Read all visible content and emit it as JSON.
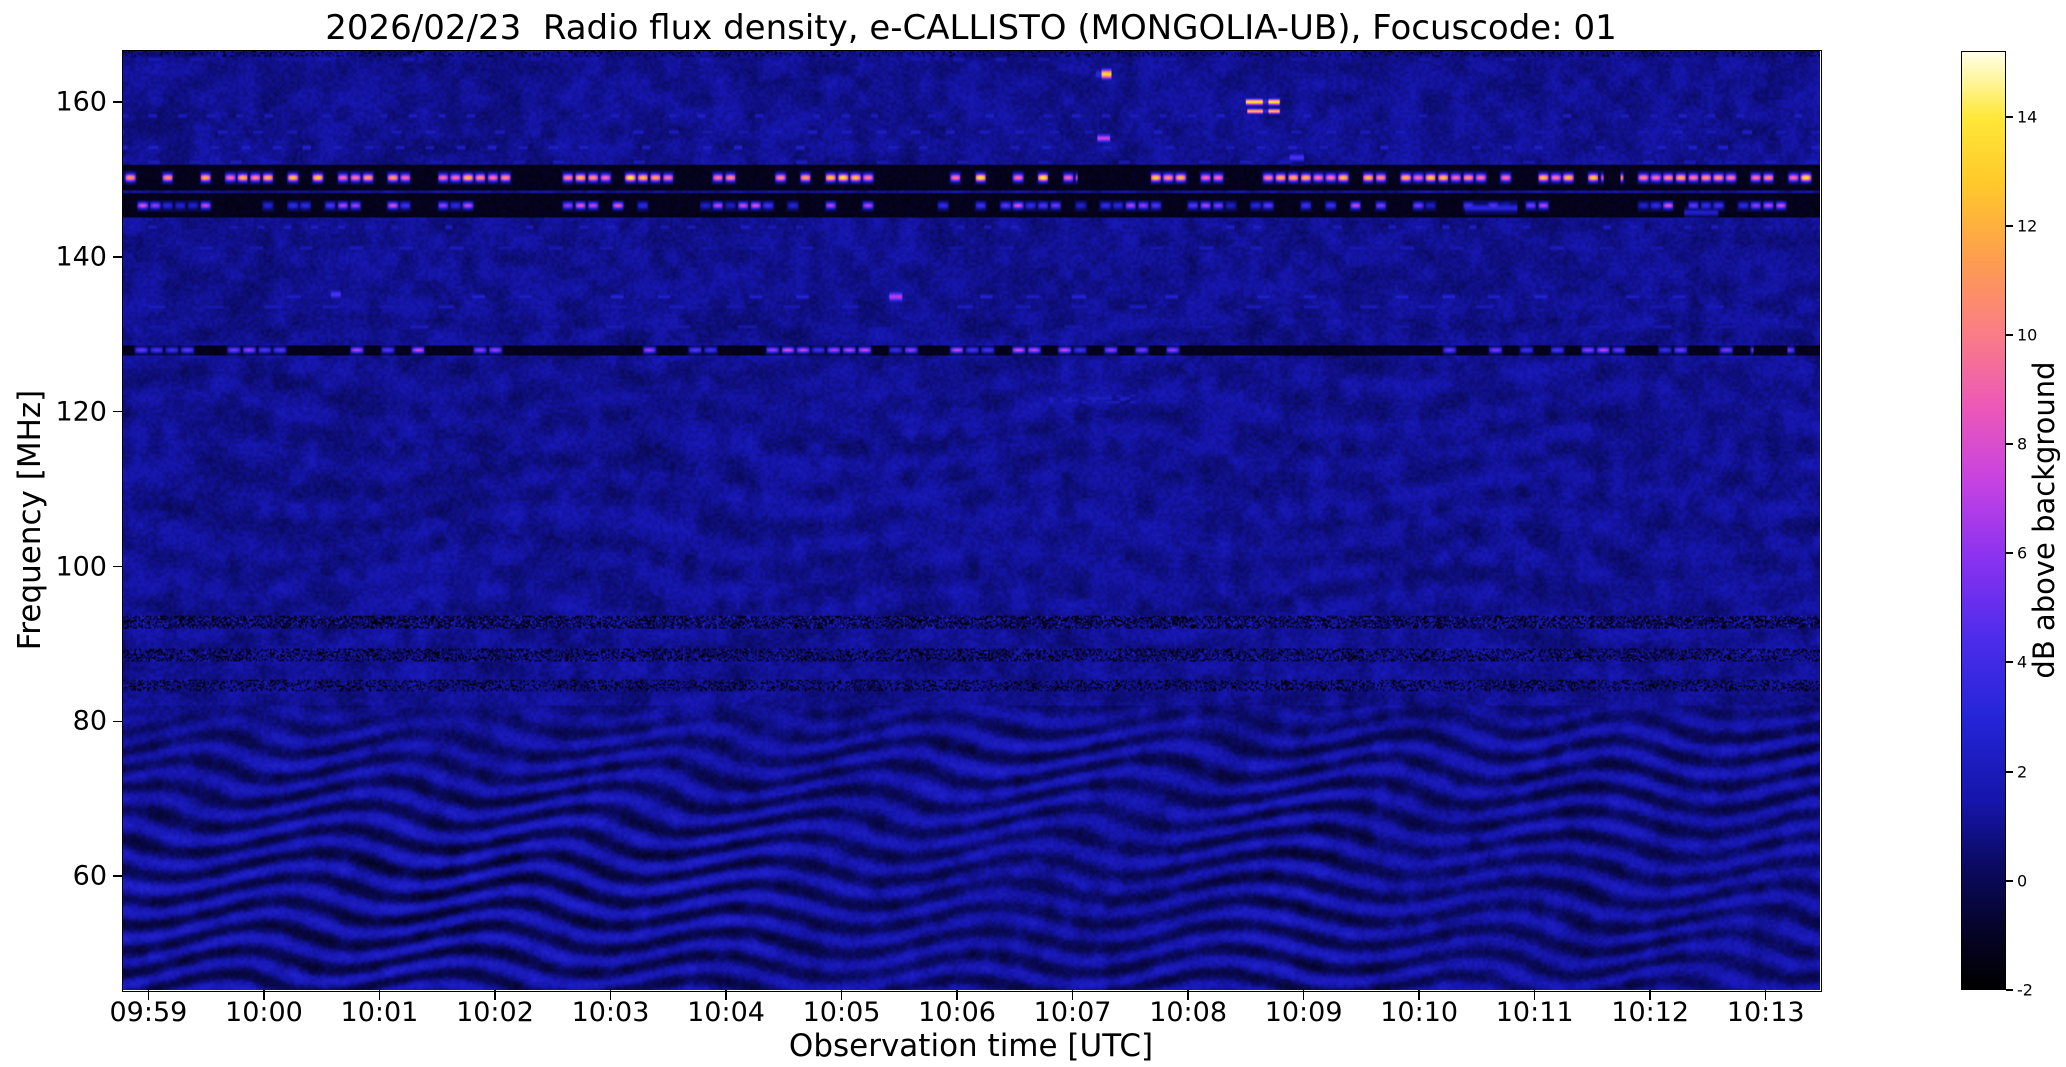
{
  "title": "2026/02/23  Radio flux density, e-CALLISTO (MONGOLIA-UB), Focuscode: 01",
  "metadata_from_title": {
    "date": "2026/02/23",
    "quantity": "Radio flux density",
    "instrument": "e-CALLISTO",
    "station": "MONGOLIA-UB",
    "focuscode": "01"
  },
  "chart_data": {
    "type": "heatmap",
    "subtype": "radio-spectrogram",
    "title": "2026/02/23  Radio flux density, e-CALLISTO (MONGOLIA-UB), Focuscode: 01",
    "x_axis": {
      "label": "Observation time [UTC]",
      "tick_labels": [
        "09:59",
        "10:00",
        "10:01",
        "10:02",
        "10:03",
        "10:04",
        "10:05",
        "10:06",
        "10:07",
        "10:08",
        "10:09",
        "10:10",
        "10:11",
        "10:12",
        "10:13"
      ],
      "t_start_min": -0.22,
      "t_end_min": 14.47
    },
    "y_axis": {
      "label": "Frequency [MHz]",
      "ticks": [
        160,
        140,
        120,
        100,
        80,
        60
      ],
      "range": [
        45.3,
        166.6
      ]
    },
    "colorbar": {
      "label": "dB above background",
      "ticks": [
        -2,
        0,
        2,
        4,
        6,
        8,
        10,
        12,
        14
      ],
      "range": [
        -2,
        15.2
      ],
      "stops": [
        {
          "p": 0.0,
          "c": "#000000"
        },
        {
          "p": 0.06,
          "c": "#050326"
        },
        {
          "p": 0.13,
          "c": "#0a0a60"
        },
        {
          "p": 0.2,
          "c": "#1515aa"
        },
        {
          "p": 0.29,
          "c": "#2525d8"
        },
        {
          "p": 0.37,
          "c": "#4a2ceb"
        },
        {
          "p": 0.46,
          "c": "#8a32f0"
        },
        {
          "p": 0.54,
          "c": "#c542e2"
        },
        {
          "p": 0.62,
          "c": "#ec58b8"
        },
        {
          "p": 0.7,
          "c": "#fa7d85"
        },
        {
          "p": 0.78,
          "c": "#fd9e4e"
        },
        {
          "p": 0.86,
          "c": "#ffc92a"
        },
        {
          "p": 0.93,
          "c": "#ffe838"
        },
        {
          "p": 1.0,
          "c": "#ffffe8"
        }
      ]
    },
    "features": {
      "background": {
        "mean_db": 1.0,
        "noise_db": 0.8
      },
      "bands": [
        {
          "freq": 150.3,
          "width": 1.7,
          "dash_s": 6.5,
          "duty": 0.62,
          "min_db": 9.5,
          "max_db": 15.4,
          "border": true,
          "seed": 11,
          "gaps": [
            [
              8.05,
              8.25
            ],
            [
              12.6,
              12.75
            ]
          ]
        },
        {
          "freq": 146.7,
          "width": 1.5,
          "dash_s": 6.5,
          "duty": 0.55,
          "min_db": 2.5,
          "max_db": 9.0,
          "border": true,
          "seed": 29,
          "gaps": []
        },
        {
          "freq": 128.0,
          "width": 1.3,
          "dash_s": 8.0,
          "duty": 0.5,
          "min_db": 4.0,
          "max_db": 8.5,
          "border": false,
          "seed": 47,
          "gaps": [
            [
              3.25,
              4.0
            ],
            [
              8.95,
              10.6
            ],
            [
              13.9,
              14.2
            ]
          ]
        }
      ],
      "dot_rows": [
        {
          "freq": 165.6,
          "period_s": 22,
          "db": 1.7,
          "seed": 3
        },
        {
          "freq": 158.3,
          "period_s": 15,
          "db": 2.3,
          "seed": 5
        },
        {
          "freq": 156.2,
          "period_s": 18,
          "db": 2.1,
          "seed": 7
        },
        {
          "freq": 154.2,
          "period_s": 16,
          "db": 2.4,
          "seed": 9
        },
        {
          "freq": 152.3,
          "period_s": 21,
          "db": 2.0,
          "seed": 13
        },
        {
          "freq": 143.9,
          "period_s": 14,
          "db": 2.2,
          "seed": 15
        },
        {
          "freq": 141.2,
          "period_s": 26,
          "db": 1.8,
          "seed": 17
        },
        {
          "freq": 134.9,
          "period_s": 24,
          "db": 2.6,
          "seed": 19
        },
        {
          "freq": 133.6,
          "period_s": 30,
          "db": 1.9,
          "seed": 21
        },
        {
          "freq": 131.0,
          "period_s": 34,
          "db": 1.7,
          "seed": 23
        }
      ],
      "speckle_bands": [
        {
          "freq_range": [
            91.9,
            93.7
          ],
          "density": 0.7,
          "db_range": [
            -2,
            3.2
          ],
          "seed": 31
        },
        {
          "freq_range": [
            87.7,
            89.3
          ],
          "density": 0.55,
          "db_range": [
            -2,
            2.8
          ],
          "seed": 37
        },
        {
          "freq_range": [
            83.9,
            85.3
          ],
          "density": 0.5,
          "db_range": [
            -2,
            2.4
          ],
          "seed": 41
        },
        {
          "freq_range": [
            165.9,
            166.6
          ],
          "density": 0.25,
          "db_range": [
            -1.5,
            0.5
          ],
          "seed": 43
        }
      ],
      "ripple": {
        "freq_max": 82,
        "vert_period_mhz": 3.1,
        "amp_db": 0.95,
        "time_wobble": 2.8
      },
      "transients": [
        {
          "freq": 163.7,
          "t_min": 8.2,
          "dur_min": 0.14,
          "db": 13.5,
          "height": 1.6,
          "texture": "dashed"
        },
        {
          "freq": 160.1,
          "t_min": 9.5,
          "dur_min": 0.3,
          "db": 14.5,
          "height": 1.0,
          "texture": "dashed"
        },
        {
          "freq": 158.9,
          "t_min": 9.52,
          "dur_min": 0.28,
          "db": 13.0,
          "height": 0.8,
          "texture": "dashed"
        },
        {
          "freq": 155.4,
          "t_min": 8.22,
          "dur_min": 0.1,
          "db": 7.5,
          "height": 1.3,
          "texture": "solid"
        },
        {
          "freq": 152.9,
          "t_min": 9.88,
          "dur_min": 0.12,
          "db": 4.5,
          "height": 1.3,
          "texture": "solid"
        },
        {
          "freq": 134.9,
          "t_min": 6.42,
          "dur_min": 0.1,
          "db": 7.0,
          "height": 1.6,
          "texture": "solid"
        },
        {
          "freq": 135.2,
          "t_min": 1.58,
          "dur_min": 0.08,
          "db": 4.5,
          "height": 1.4,
          "texture": "solid"
        },
        {
          "freq": 121.6,
          "t_min": 7.8,
          "dur_min": 0.75,
          "db": 2.3,
          "height": 2.6,
          "texture": "dotted"
        },
        {
          "freq": 146.4,
          "t_min": 11.4,
          "dur_min": 0.45,
          "db": 3.2,
          "height": 1.1,
          "texture": "solid"
        },
        {
          "freq": 145.8,
          "t_min": 13.3,
          "dur_min": 0.3,
          "db": 2.6,
          "height": 1.0,
          "texture": "solid"
        }
      ]
    }
  }
}
